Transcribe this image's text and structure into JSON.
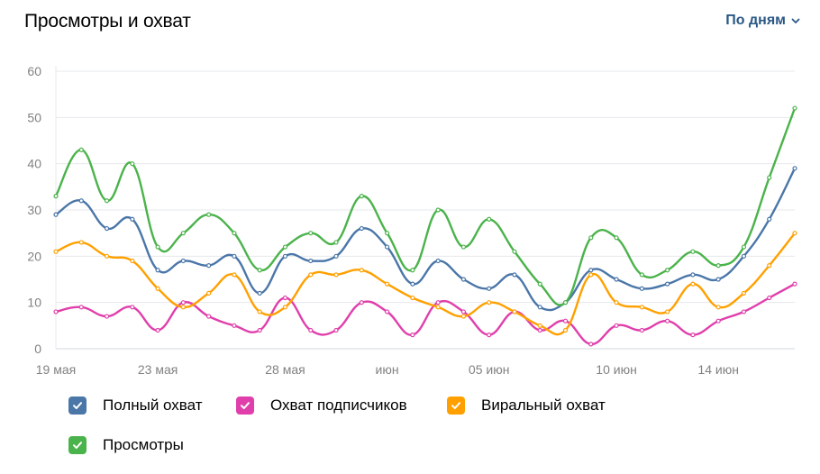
{
  "header": {
    "title": "Просмотры и охват",
    "period_label": "По дням"
  },
  "chart_data": {
    "type": "line",
    "title": "Просмотры и охват",
    "x_tick_labels": [
      {
        "index": 0,
        "label": "19 мая"
      },
      {
        "index": 4,
        "label": "23 мая"
      },
      {
        "index": 9,
        "label": "28 мая"
      },
      {
        "index": 13,
        "label": "июн"
      },
      {
        "index": 17,
        "label": "05 июн"
      },
      {
        "index": 22,
        "label": "10 июн"
      },
      {
        "index": 26,
        "label": "14 июн"
      }
    ],
    "ylim": [
      0,
      60
    ],
    "y_ticks": [
      0,
      10,
      20,
      30,
      40,
      50,
      60
    ],
    "grid": "horizontal",
    "legend_position": "bottom",
    "series": [
      {
        "name": "Полный охват",
        "color": "#4a76a8",
        "values": [
          29,
          32,
          26,
          28,
          17,
          19,
          18,
          20,
          12,
          20,
          19,
          20,
          26,
          22,
          14,
          19,
          15,
          13,
          16,
          9,
          10,
          17,
          15,
          13,
          14,
          16,
          15,
          20,
          28,
          39
        ]
      },
      {
        "name": "Охват подписчиков",
        "color": "#e03fab",
        "values": [
          8,
          9,
          7,
          9,
          4,
          10,
          7,
          5,
          4,
          11,
          4,
          4,
          10,
          8,
          3,
          10,
          8,
          3,
          8,
          4,
          6,
          1,
          5,
          4,
          6,
          3,
          6,
          8,
          11,
          14
        ]
      },
      {
        "name": "Виральный охват",
        "color": "#ffa000",
        "values": [
          21,
          23,
          20,
          19,
          13,
          9,
          12,
          16,
          8,
          9,
          16,
          16,
          17,
          14,
          11,
          9,
          7,
          10,
          8,
          5,
          4,
          16,
          10,
          9,
          8,
          14,
          9,
          12,
          18,
          25
        ]
      },
      {
        "name": "Просмотры",
        "color": "#4bb34b",
        "values": [
          33,
          43,
          32,
          40,
          22,
          25,
          29,
          25,
          17,
          22,
          25,
          23,
          33,
          25,
          17,
          30,
          22,
          28,
          21,
          14,
          10,
          24,
          24,
          16,
          17,
          21,
          18,
          22,
          37,
          52
        ]
      }
    ]
  }
}
